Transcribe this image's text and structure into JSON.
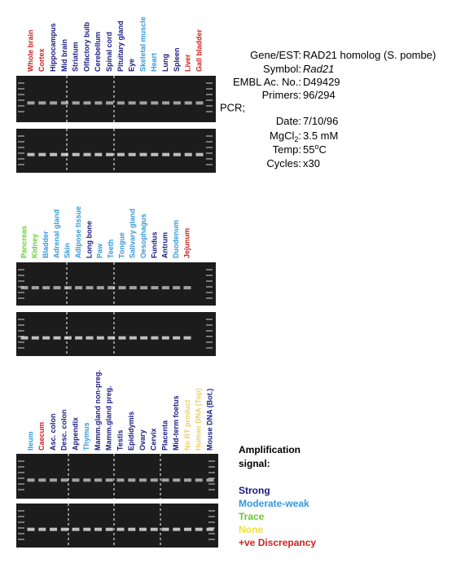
{
  "panels": [
    {
      "lanes": [
        {
          "label": "Whole brain",
          "color": "#cc2222"
        },
        {
          "label": "Cortex",
          "color": "#cc2222"
        },
        {
          "label": "Hippocampus",
          "color": "#1a1a80"
        },
        {
          "label": "Mid brain",
          "color": "#1a1a80"
        },
        {
          "label": "Striatum",
          "color": "#1a1a80"
        },
        {
          "label": "Olfactory bulb",
          "color": "#1a1a80"
        },
        {
          "label": "Cerebellum",
          "color": "#1a1a80"
        },
        {
          "label": "Spinal cord",
          "color": "#1a1a80"
        },
        {
          "label": "Pituitary gland",
          "color": "#1a1a80"
        },
        {
          "label": "Eye",
          "color": "#1a1a80"
        },
        {
          "label": "Skeletal muscle",
          "color": "#3399dd"
        },
        {
          "label": "Heart",
          "color": "#3399dd"
        },
        {
          "label": "Lung",
          "color": "#1a1a80"
        },
        {
          "label": "Spleen",
          "color": "#1a1a80"
        },
        {
          "label": "Liver",
          "color": "#cc2222"
        },
        {
          "label": "Gall bladder",
          "color": "#cc2222"
        }
      ]
    },
    {
      "lanes": [
        {
          "label": "Pancreas",
          "color": "#66cc33"
        },
        {
          "label": "Kidney",
          "color": "#66cc33"
        },
        {
          "label": "Bladder",
          "color": "#3399dd"
        },
        {
          "label": "Adrenal gland",
          "color": "#3399dd"
        },
        {
          "label": "Skin",
          "color": "#3399dd"
        },
        {
          "label": "Adipose tissue",
          "color": "#3399dd"
        },
        {
          "label": "Long bone",
          "color": "#1a1a80"
        },
        {
          "label": "Paw",
          "color": "#3399dd"
        },
        {
          "label": "Teeth",
          "color": "#3399dd"
        },
        {
          "label": "Tongue",
          "color": "#3399dd"
        },
        {
          "label": "Salivary gland",
          "color": "#3399dd"
        },
        {
          "label": "Oesophagus",
          "color": "#3399dd"
        },
        {
          "label": "Fundus",
          "color": "#1a1a80"
        },
        {
          "label": "Antrum",
          "color": "#1a1a80"
        },
        {
          "label": "Duodenum",
          "color": "#3399dd"
        },
        {
          "label": "Jejunum",
          "color": "#cc2222"
        }
      ]
    },
    {
      "lanes": [
        {
          "label": "Ileum",
          "color": "#3399dd"
        },
        {
          "label": "Caecum",
          "color": "#cc2222"
        },
        {
          "label": "Asc. colon",
          "color": "#1a1a80"
        },
        {
          "label": "Desc. colon",
          "color": "#1a1a80"
        },
        {
          "label": "Appendix",
          "color": "#1a1a80"
        },
        {
          "label": "Thymus",
          "color": "#3399dd"
        },
        {
          "label": "Mamm.gland non-preg.",
          "color": "#1a1a80"
        },
        {
          "label": "Mamm.gland preg.",
          "color": "#1a1a80"
        },
        {
          "label": "Testis",
          "color": "#1a1a80"
        },
        {
          "label": "Epididymis",
          "color": "#1a1a80"
        },
        {
          "label": "Ovary",
          "color": "#1a1a80"
        },
        {
          "label": "Cervix",
          "color": "#1a1a80"
        },
        {
          "label": "Placenta",
          "color": "#1a1a80"
        },
        {
          "label": "Mid-term foetus",
          "color": "#1a1a80"
        },
        {
          "label": "No RT product",
          "color": "#f0d060"
        },
        {
          "label": "Human DNA (Top)",
          "color": "#f0d060"
        },
        {
          "label": "Mouse DNA (Bot.)",
          "color": "#1a1a80"
        }
      ]
    }
  ],
  "info": [
    {
      "key": "Gene/EST:",
      "value": "RAD21 homolog (S. pombe)"
    },
    {
      "key": "Symbol:",
      "value": "Rad21",
      "italic": true
    },
    {
      "key": "EMBL Ac. No.:",
      "value": "D49429"
    },
    {
      "key": "Primers:",
      "value": "96/294"
    },
    {
      "heading": "PCR;"
    },
    {
      "key": "Date:",
      "value": "7/10/96"
    },
    {
      "key": "MgCl",
      "sub": "2",
      "key_end": ":",
      "value": "3.5 mM"
    },
    {
      "key": "Temp:",
      "value": "55",
      "sup": "o",
      "value_end": "C"
    },
    {
      "key": "Cycles:",
      "value": "x30"
    }
  ],
  "legend": {
    "title": [
      "Amplification",
      "signal:"
    ],
    "items": [
      {
        "label": "Strong",
        "color": "#1a1a80"
      },
      {
        "label": "Moderate-weak",
        "color": "#3399dd"
      },
      {
        "label": "Trace",
        "color": "#66cc33"
      },
      {
        "label": "None",
        "color": "#f0e040"
      },
      {
        "label": "+ve Discrepancy",
        "color": "#cc2222"
      }
    ]
  }
}
